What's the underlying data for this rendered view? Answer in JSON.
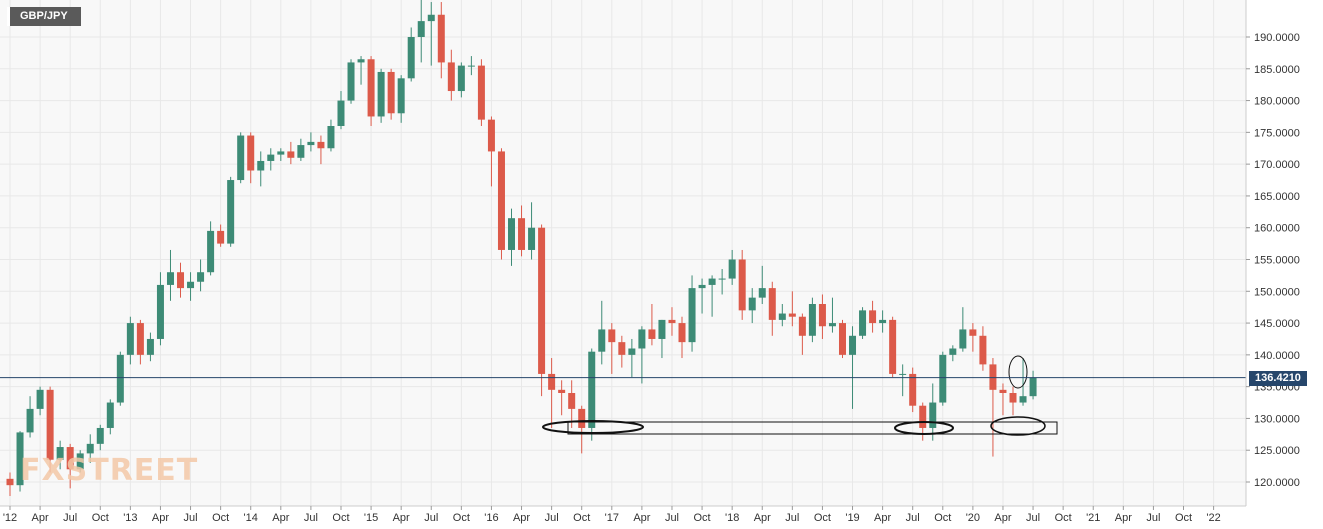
{
  "symbol": "GBP/JPY",
  "watermark": "FXSTREET",
  "colors": {
    "up": "#3d8b76",
    "down": "#dc5a4a",
    "grid": "#e8e8e8",
    "last_price_line": "#26466b",
    "background": "#f8f8f8"
  },
  "chart_data": {
    "type": "candlestick",
    "timeframe": "monthly",
    "last_price": 136.421,
    "last_price_label": "136.4210",
    "ylim": [
      117.5,
      197
    ],
    "y_ticks": [
      "120.0000",
      "125.0000",
      "130.0000",
      "135.0000",
      "140.0000",
      "145.0000",
      "150.0000",
      "155.0000",
      "160.0000",
      "165.0000",
      "170.0000",
      "175.0000",
      "180.0000",
      "185.0000",
      "190.0000"
    ],
    "x_ticks": [
      {
        "label": "'12",
        "month": "2012-01"
      },
      {
        "label": "Apr",
        "month": "2012-04"
      },
      {
        "label": "Jul",
        "month": "2012-07"
      },
      {
        "label": "Oct",
        "month": "2012-10"
      },
      {
        "label": "'13",
        "month": "2013-01"
      },
      {
        "label": "Apr",
        "month": "2013-04"
      },
      {
        "label": "Jul",
        "month": "2013-07"
      },
      {
        "label": "Oct",
        "month": "2013-10"
      },
      {
        "label": "'14",
        "month": "2014-01"
      },
      {
        "label": "Apr",
        "month": "2014-04"
      },
      {
        "label": "Jul",
        "month": "2014-07"
      },
      {
        "label": "Oct",
        "month": "2014-10"
      },
      {
        "label": "'15",
        "month": "2015-01"
      },
      {
        "label": "Apr",
        "month": "2015-04"
      },
      {
        "label": "Jul",
        "month": "2015-07"
      },
      {
        "label": "Oct",
        "month": "2015-10"
      },
      {
        "label": "'16",
        "month": "2016-01"
      },
      {
        "label": "Apr",
        "month": "2016-04"
      },
      {
        "label": "Jul",
        "month": "2016-07"
      },
      {
        "label": "Oct",
        "month": "2016-10"
      },
      {
        "label": "'17",
        "month": "2017-01"
      },
      {
        "label": "Apr",
        "month": "2017-04"
      },
      {
        "label": "Jul",
        "month": "2017-07"
      },
      {
        "label": "Oct",
        "month": "2017-10"
      },
      {
        "label": "'18",
        "month": "2018-01"
      },
      {
        "label": "Apr",
        "month": "2018-04"
      },
      {
        "label": "Jul",
        "month": "2018-07"
      },
      {
        "label": "Oct",
        "month": "2018-10"
      },
      {
        "label": "'19",
        "month": "2019-01"
      },
      {
        "label": "Apr",
        "month": "2019-04"
      },
      {
        "label": "Jul",
        "month": "2019-07"
      },
      {
        "label": "Oct",
        "month": "2019-10"
      },
      {
        "label": "'20",
        "month": "2020-01"
      },
      {
        "label": "Apr",
        "month": "2020-04"
      },
      {
        "label": "Jul",
        "month": "2020-07"
      },
      {
        "label": "Oct",
        "month": "2020-10"
      },
      {
        "label": "'21",
        "month": "2021-01"
      },
      {
        "label": "Apr",
        "month": "2021-04"
      },
      {
        "label": "Jul",
        "month": "2021-07"
      },
      {
        "label": "Oct",
        "month": "2021-10"
      },
      {
        "label": "'22",
        "month": "2022-01"
      }
    ],
    "candles": [
      {
        "t": "2012-01",
        "o": 120.5,
        "h": 121.5,
        "l": 117.8,
        "c": 119.5
      },
      {
        "t": "2012-02",
        "o": 119.5,
        "h": 128.0,
        "l": 118.5,
        "c": 127.8
      },
      {
        "t": "2012-03",
        "o": 127.8,
        "h": 133.5,
        "l": 127.0,
        "c": 131.5
      },
      {
        "t": "2012-04",
        "o": 131.5,
        "h": 135.0,
        "l": 130.5,
        "c": 134.5
      },
      {
        "t": "2012-05",
        "o": 134.5,
        "h": 135.0,
        "l": 121.5,
        "c": 123.5
      },
      {
        "t": "2012-06",
        "o": 123.5,
        "h": 126.5,
        "l": 122.0,
        "c": 125.5
      },
      {
        "t": "2012-07",
        "o": 125.5,
        "h": 126.0,
        "l": 119.0,
        "c": 122.0
      },
      {
        "t": "2012-08",
        "o": 122.0,
        "h": 125.0,
        "l": 121.5,
        "c": 124.5
      },
      {
        "t": "2012-09",
        "o": 124.5,
        "h": 127.5,
        "l": 123.0,
        "c": 126.0
      },
      {
        "t": "2012-10",
        "o": 126.0,
        "h": 129.0,
        "l": 125.0,
        "c": 128.5
      },
      {
        "t": "2012-11",
        "o": 128.5,
        "h": 133.0,
        "l": 127.5,
        "c": 132.5
      },
      {
        "t": "2012-12",
        "o": 132.5,
        "h": 140.5,
        "l": 132.0,
        "c": 140.0
      },
      {
        "t": "2013-01",
        "o": 140.0,
        "h": 146.0,
        "l": 138.5,
        "c": 145.0
      },
      {
        "t": "2013-02",
        "o": 145.0,
        "h": 145.5,
        "l": 138.5,
        "c": 140.0
      },
      {
        "t": "2013-03",
        "o": 140.0,
        "h": 143.5,
        "l": 139.0,
        "c": 142.5
      },
      {
        "t": "2013-04",
        "o": 142.5,
        "h": 153.0,
        "l": 141.5,
        "c": 151.0
      },
      {
        "t": "2013-05",
        "o": 151.0,
        "h": 156.5,
        "l": 148.5,
        "c": 153.0
      },
      {
        "t": "2013-06",
        "o": 153.0,
        "h": 154.5,
        "l": 149.0,
        "c": 150.5
      },
      {
        "t": "2013-07",
        "o": 150.5,
        "h": 153.0,
        "l": 148.5,
        "c": 151.5
      },
      {
        "t": "2013-08",
        "o": 151.5,
        "h": 155.0,
        "l": 150.0,
        "c": 153.0
      },
      {
        "t": "2013-09",
        "o": 153.0,
        "h": 161.0,
        "l": 152.5,
        "c": 159.5
      },
      {
        "t": "2013-10",
        "o": 159.5,
        "h": 160.5,
        "l": 157.0,
        "c": 157.5
      },
      {
        "t": "2013-11",
        "o": 157.5,
        "h": 168.0,
        "l": 157.0,
        "c": 167.5
      },
      {
        "t": "2013-12",
        "o": 167.5,
        "h": 175.0,
        "l": 167.0,
        "c": 174.5
      },
      {
        "t": "2014-01",
        "o": 174.5,
        "h": 175.0,
        "l": 167.0,
        "c": 169.0
      },
      {
        "t": "2014-02",
        "o": 169.0,
        "h": 172.0,
        "l": 166.5,
        "c": 170.5
      },
      {
        "t": "2014-03",
        "o": 170.5,
        "h": 172.5,
        "l": 169.0,
        "c": 171.5
      },
      {
        "t": "2014-04",
        "o": 171.5,
        "h": 172.5,
        "l": 170.5,
        "c": 172.0
      },
      {
        "t": "2014-05",
        "o": 172.0,
        "h": 173.5,
        "l": 170.0,
        "c": 171.0
      },
      {
        "t": "2014-06",
        "o": 171.0,
        "h": 174.0,
        "l": 170.5,
        "c": 173.0
      },
      {
        "t": "2014-07",
        "o": 173.0,
        "h": 175.0,
        "l": 172.0,
        "c": 173.5
      },
      {
        "t": "2014-08",
        "o": 173.5,
        "h": 174.5,
        "l": 170.0,
        "c": 172.5
      },
      {
        "t": "2014-09",
        "o": 172.5,
        "h": 177.0,
        "l": 172.0,
        "c": 176.0
      },
      {
        "t": "2014-10",
        "o": 176.0,
        "h": 181.5,
        "l": 175.5,
        "c": 180.0
      },
      {
        "t": "2014-11",
        "o": 180.0,
        "h": 186.5,
        "l": 179.5,
        "c": 186.0
      },
      {
        "t": "2014-12",
        "o": 186.0,
        "h": 187.0,
        "l": 182.5,
        "c": 186.5
      },
      {
        "t": "2015-01",
        "o": 186.5,
        "h": 187.0,
        "l": 176.0,
        "c": 177.5
      },
      {
        "t": "2015-02",
        "o": 177.5,
        "h": 185.0,
        "l": 176.5,
        "c": 184.5
      },
      {
        "t": "2015-03",
        "o": 184.5,
        "h": 185.0,
        "l": 177.0,
        "c": 178.0
      },
      {
        "t": "2015-04",
        "o": 178.0,
        "h": 184.0,
        "l": 176.5,
        "c": 183.5
      },
      {
        "t": "2015-05",
        "o": 183.5,
        "h": 191.5,
        "l": 183.0,
        "c": 190.0
      },
      {
        "t": "2015-06",
        "o": 190.0,
        "h": 196.5,
        "l": 186.0,
        "c": 192.5
      },
      {
        "t": "2015-07",
        "o": 192.5,
        "h": 195.5,
        "l": 185.5,
        "c": 193.5
      },
      {
        "t": "2015-08",
        "o": 193.5,
        "h": 195.5,
        "l": 183.5,
        "c": 186.0
      },
      {
        "t": "2015-09",
        "o": 186.0,
        "h": 188.0,
        "l": 180.0,
        "c": 181.5
      },
      {
        "t": "2015-10",
        "o": 181.5,
        "h": 186.0,
        "l": 180.5,
        "c": 185.5
      },
      {
        "t": "2015-11",
        "o": 185.5,
        "h": 187.0,
        "l": 184.0,
        "c": 185.5
      },
      {
        "t": "2015-12",
        "o": 185.5,
        "h": 186.5,
        "l": 176.0,
        "c": 177.0
      },
      {
        "t": "2016-01",
        "o": 177.0,
        "h": 177.5,
        "l": 166.5,
        "c": 172.0
      },
      {
        "t": "2016-02",
        "o": 172.0,
        "h": 172.5,
        "l": 155.0,
        "c": 156.5
      },
      {
        "t": "2016-03",
        "o": 156.5,
        "h": 163.0,
        "l": 154.0,
        "c": 161.5
      },
      {
        "t": "2016-04",
        "o": 161.5,
        "h": 163.5,
        "l": 155.5,
        "c": 156.5
      },
      {
        "t": "2016-05",
        "o": 156.5,
        "h": 164.0,
        "l": 155.0,
        "c": 160.0
      },
      {
        "t": "2016-06",
        "o": 160.0,
        "h": 160.5,
        "l": 133.5,
        "c": 137.0
      },
      {
        "t": "2016-07",
        "o": 137.0,
        "h": 139.5,
        "l": 128.5,
        "c": 134.5
      },
      {
        "t": "2016-08",
        "o": 134.5,
        "h": 136.0,
        "l": 130.5,
        "c": 134.0
      },
      {
        "t": "2016-09",
        "o": 134.0,
        "h": 136.0,
        "l": 128.5,
        "c": 131.5
      },
      {
        "t": "2016-10",
        "o": 131.5,
        "h": 132.0,
        "l": 124.5,
        "c": 128.5
      },
      {
        "t": "2016-11",
        "o": 128.5,
        "h": 141.0,
        "l": 126.5,
        "c": 140.5
      },
      {
        "t": "2016-12",
        "o": 140.5,
        "h": 148.5,
        "l": 138.5,
        "c": 144.0
      },
      {
        "t": "2017-01",
        "o": 144.0,
        "h": 145.0,
        "l": 137.0,
        "c": 142.0
      },
      {
        "t": "2017-02",
        "o": 142.0,
        "h": 143.0,
        "l": 138.0,
        "c": 140.0
      },
      {
        "t": "2017-03",
        "o": 140.0,
        "h": 142.5,
        "l": 136.5,
        "c": 141.0
      },
      {
        "t": "2017-04",
        "o": 141.0,
        "h": 144.5,
        "l": 135.5,
        "c": 144.0
      },
      {
        "t": "2017-05",
        "o": 144.0,
        "h": 148.0,
        "l": 141.5,
        "c": 142.5
      },
      {
        "t": "2017-06",
        "o": 142.5,
        "h": 145.5,
        "l": 139.5,
        "c": 145.5
      },
      {
        "t": "2017-07",
        "o": 145.5,
        "h": 147.5,
        "l": 143.0,
        "c": 145.0
      },
      {
        "t": "2017-08",
        "o": 145.0,
        "h": 146.0,
        "l": 139.5,
        "c": 142.0
      },
      {
        "t": "2017-09",
        "o": 142.0,
        "h": 152.5,
        "l": 140.5,
        "c": 150.5
      },
      {
        "t": "2017-10",
        "o": 150.5,
        "h": 152.0,
        "l": 146.5,
        "c": 151.0
      },
      {
        "t": "2017-11",
        "o": 151.0,
        "h": 152.5,
        "l": 146.0,
        "c": 152.0
      },
      {
        "t": "2017-12",
        "o": 152.0,
        "h": 153.5,
        "l": 149.5,
        "c": 152.0
      },
      {
        "t": "2018-01",
        "o": 152.0,
        "h": 156.5,
        "l": 151.0,
        "c": 155.0
      },
      {
        "t": "2018-02",
        "o": 155.0,
        "h": 156.5,
        "l": 145.5,
        "c": 147.0
      },
      {
        "t": "2018-03",
        "o": 147.0,
        "h": 150.5,
        "l": 145.0,
        "c": 149.0
      },
      {
        "t": "2018-04",
        "o": 149.0,
        "h": 154.0,
        "l": 148.0,
        "c": 150.5
      },
      {
        "t": "2018-05",
        "o": 150.5,
        "h": 151.5,
        "l": 143.0,
        "c": 145.5
      },
      {
        "t": "2018-06",
        "o": 145.5,
        "h": 148.0,
        "l": 144.5,
        "c": 146.5
      },
      {
        "t": "2018-07",
        "o": 146.5,
        "h": 150.0,
        "l": 144.5,
        "c": 146.0
      },
      {
        "t": "2018-08",
        "o": 146.0,
        "h": 146.5,
        "l": 140.0,
        "c": 143.0
      },
      {
        "t": "2018-09",
        "o": 143.0,
        "h": 149.0,
        "l": 142.0,
        "c": 148.0
      },
      {
        "t": "2018-10",
        "o": 148.0,
        "h": 149.5,
        "l": 142.5,
        "c": 144.5
      },
      {
        "t": "2018-11",
        "o": 144.5,
        "h": 149.0,
        "l": 143.5,
        "c": 145.0
      },
      {
        "t": "2018-12",
        "o": 145.0,
        "h": 145.5,
        "l": 139.5,
        "c": 140.0
      },
      {
        "t": "2019-01",
        "o": 140.0,
        "h": 144.5,
        "l": 131.5,
        "c": 143.0
      },
      {
        "t": "2019-02",
        "o": 143.0,
        "h": 147.5,
        "l": 142.5,
        "c": 147.0
      },
      {
        "t": "2019-03",
        "o": 147.0,
        "h": 148.5,
        "l": 143.5,
        "c": 145.0
      },
      {
        "t": "2019-04",
        "o": 145.0,
        "h": 147.0,
        "l": 143.5,
        "c": 145.5
      },
      {
        "t": "2019-05",
        "o": 145.5,
        "h": 146.0,
        "l": 136.5,
        "c": 137.0
      },
      {
        "t": "2019-06",
        "o": 137.0,
        "h": 138.5,
        "l": 133.5,
        "c": 137.0
      },
      {
        "t": "2019-07",
        "o": 137.0,
        "h": 138.0,
        "l": 131.0,
        "c": 132.0
      },
      {
        "t": "2019-08",
        "o": 132.0,
        "h": 132.5,
        "l": 126.5,
        "c": 128.5
      },
      {
        "t": "2019-09",
        "o": 128.5,
        "h": 135.5,
        "l": 126.5,
        "c": 132.5
      },
      {
        "t": "2019-10",
        "o": 132.5,
        "h": 140.5,
        "l": 132.0,
        "c": 140.0
      },
      {
        "t": "2019-11",
        "o": 140.0,
        "h": 141.5,
        "l": 139.0,
        "c": 141.0
      },
      {
        "t": "2019-12",
        "o": 141.0,
        "h": 147.5,
        "l": 140.5,
        "c": 144.0
      },
      {
        "t": "2020-01",
        "o": 144.0,
        "h": 145.0,
        "l": 140.5,
        "c": 143.0
      },
      {
        "t": "2020-02",
        "o": 143.0,
        "h": 144.5,
        "l": 137.5,
        "c": 138.5
      },
      {
        "t": "2020-03",
        "o": 138.5,
        "h": 139.5,
        "l": 124.0,
        "c": 134.5
      },
      {
        "t": "2020-04",
        "o": 134.5,
        "h": 135.5,
        "l": 130.5,
        "c": 134.0
      },
      {
        "t": "2020-05",
        "o": 134.0,
        "h": 135.0,
        "l": 130.5,
        "c": 132.5
      },
      {
        "t": "2020-06",
        "o": 132.5,
        "h": 139.5,
        "l": 132.0,
        "c": 133.5
      },
      {
        "t": "2020-07",
        "o": 133.5,
        "h": 137.5,
        "l": 133.0,
        "c": 136.42
      }
    ]
  }
}
